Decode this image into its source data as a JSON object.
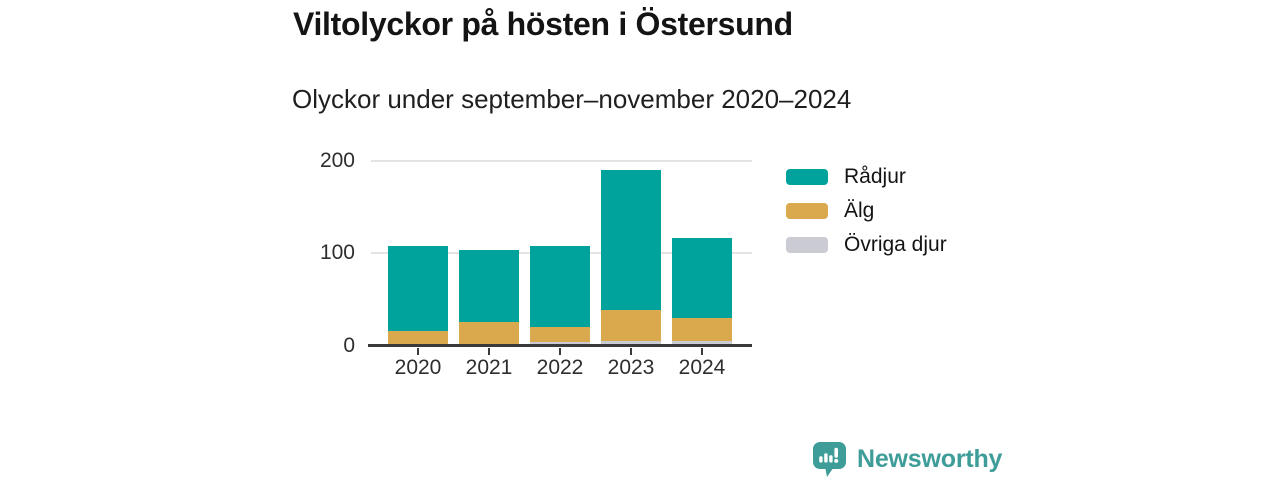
{
  "header": {
    "title": "Viltolyckor på hösten i Östersund",
    "subtitle": "Olyckor under september–november 2020–2024"
  },
  "chart_data": {
    "type": "bar",
    "stacked": true,
    "title": "Viltolyckor på hösten i Östersund",
    "subtitle": "Olyckor under september–november 2020–2024",
    "categories": [
      "2020",
      "2021",
      "2022",
      "2023",
      "2024"
    ],
    "series": [
      {
        "name": "Rådjur",
        "color": "#00A39C",
        "values": [
          92,
          78,
          88,
          151,
          86
        ]
      },
      {
        "name": "Älg",
        "color": "#DAA94E",
        "values": [
          14,
          24,
          16,
          34,
          25
        ]
      },
      {
        "name": "Övriga djur",
        "color": "#CBCBD4",
        "values": [
          2,
          2,
          4,
          5,
          5
        ]
      }
    ],
    "stack_bottom_to_top": [
      "Övriga djur",
      "Älg",
      "Rådjur"
    ],
    "totals": [
      108,
      104,
      108,
      190,
      116
    ],
    "ylim": [
      0,
      210
    ],
    "yticks": [
      0,
      100,
      200
    ],
    "grid": "horizontal",
    "legend_position": "right"
  },
  "footer": {
    "brand": "Newsworthy",
    "brand_color": "#3F9D99"
  }
}
